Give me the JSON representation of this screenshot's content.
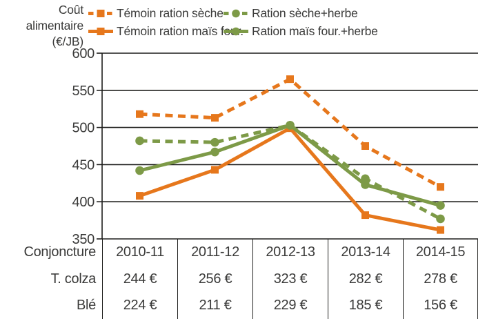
{
  "title": {
    "line1": "Coût alimentaire",
    "line2": "(€/JB)"
  },
  "colors": {
    "orange": "#E6771C",
    "green": "#7D9A47",
    "axis_line": "#1D1D1B",
    "text": "#3A3A39"
  },
  "chart_data": {
    "type": "line",
    "title": "Coût alimentaire (€/JB)",
    "categories": [
      "2010-11",
      "2011-12",
      "2012-13",
      "2013-14",
      "2014-15"
    ],
    "series": [
      {
        "name": "Témoin ration sèche",
        "color": "#E6771C",
        "style": "dashed",
        "marker": "square",
        "values": [
          518,
          513,
          565,
          475,
          420
        ]
      },
      {
        "name": "Témoin ration maïs four.",
        "color": "#E6771C",
        "style": "solid",
        "marker": "square",
        "values": [
          408,
          443,
          499,
          382,
          362
        ]
      },
      {
        "name": "Ration sèche+herbe",
        "color": "#7D9A47",
        "style": "dashed",
        "marker": "circle",
        "values": [
          482,
          480,
          503,
          431,
          377
        ]
      },
      {
        "name": "Ration maïs four.+herbe",
        "color": "#7D9A47",
        "style": "solid",
        "marker": "circle",
        "values": [
          442,
          467,
          503,
          423,
          395
        ]
      }
    ],
    "legend_order": [
      0,
      2,
      1,
      3
    ],
    "xlabel": "",
    "ylabel": "Coût alimentaire (€/JB)",
    "ylim": [
      350,
      600
    ],
    "ytick_step": 50,
    "grid": true,
    "legend_position": "top"
  },
  "table": {
    "rows": [
      {
        "label": "Conjoncture",
        "values": [
          "2010-11",
          "2011-12",
          "2012-13",
          "2013-14",
          "2014-15"
        ]
      },
      {
        "label": "T. colza",
        "values": [
          "244 €",
          "256 €",
          "323 €",
          "282 €",
          "278 €"
        ]
      },
      {
        "label": "Blé",
        "values": [
          "224 €",
          "211 €",
          "229 €",
          "185 €",
          "156 €"
        ]
      }
    ]
  }
}
